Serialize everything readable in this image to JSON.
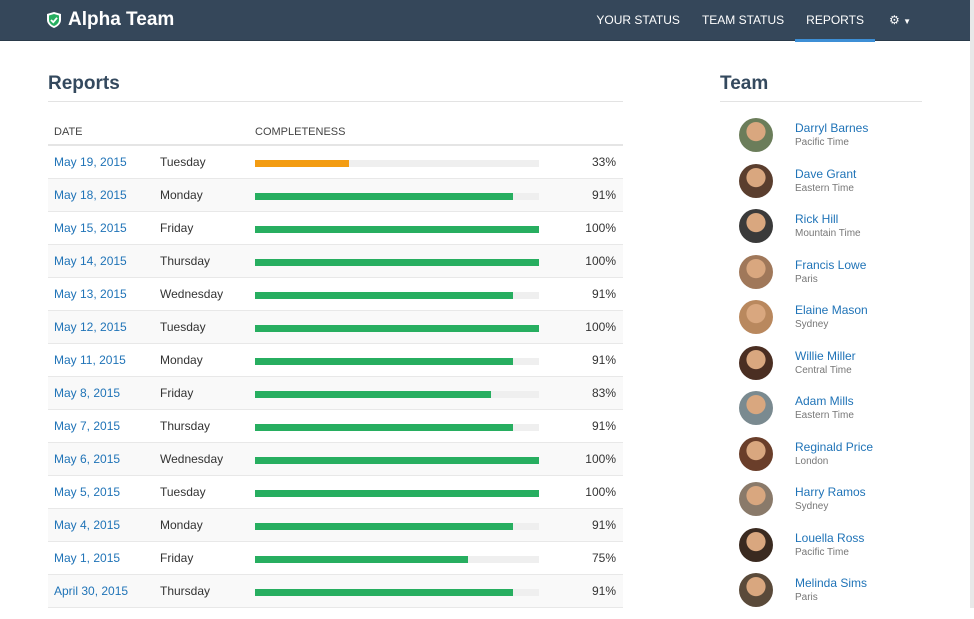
{
  "nav": {
    "brand": "Alpha Team",
    "items": [
      "YOUR STATUS",
      "TEAM STATUS",
      "REPORTS"
    ],
    "active": 2
  },
  "reports": {
    "title": "Reports",
    "headers": {
      "date": "DATE",
      "completeness": "COMPLETENESS"
    },
    "rows": [
      {
        "date": "May 19, 2015",
        "day": "Tuesday",
        "pct": 33,
        "label": "33%"
      },
      {
        "date": "May 18, 2015",
        "day": "Monday",
        "pct": 91,
        "label": "91%"
      },
      {
        "date": "May 15, 2015",
        "day": "Friday",
        "pct": 100,
        "label": "100%"
      },
      {
        "date": "May 14, 2015",
        "day": "Thursday",
        "pct": 100,
        "label": "100%"
      },
      {
        "date": "May 13, 2015",
        "day": "Wednesday",
        "pct": 91,
        "label": "91%"
      },
      {
        "date": "May 12, 2015",
        "day": "Tuesday",
        "pct": 100,
        "label": "100%"
      },
      {
        "date": "May 11, 2015",
        "day": "Monday",
        "pct": 91,
        "label": "91%"
      },
      {
        "date": "May 8, 2015",
        "day": "Friday",
        "pct": 83,
        "label": "83%"
      },
      {
        "date": "May 7, 2015",
        "day": "Thursday",
        "pct": 91,
        "label": "91%"
      },
      {
        "date": "May 6, 2015",
        "day": "Wednesday",
        "pct": 100,
        "label": "100%"
      },
      {
        "date": "May 5, 2015",
        "day": "Tuesday",
        "pct": 100,
        "label": "100%"
      },
      {
        "date": "May 4, 2015",
        "day": "Monday",
        "pct": 91,
        "label": "91%"
      },
      {
        "date": "May 1, 2015",
        "day": "Friday",
        "pct": 75,
        "label": "75%"
      },
      {
        "date": "April 30, 2015",
        "day": "Thursday",
        "pct": 91,
        "label": "91%"
      }
    ]
  },
  "colors": {
    "low": "#f39c12",
    "ok": "#27ae60"
  },
  "team": {
    "title": "Team",
    "members": [
      {
        "name": "Darryl Barnes",
        "tz": "Pacific Time",
        "c": "#6b7d5a"
      },
      {
        "name": "Dave Grant",
        "tz": "Eastern Time",
        "c": "#5a3e2e"
      },
      {
        "name": "Rick Hill",
        "tz": "Mountain Time",
        "c": "#3a3a3a"
      },
      {
        "name": "Francis Lowe",
        "tz": "Paris",
        "c": "#a0785a"
      },
      {
        "name": "Elaine Mason",
        "tz": "Sydney",
        "c": "#b9885e"
      },
      {
        "name": "Willie Miller",
        "tz": "Central Time",
        "c": "#4a2e22"
      },
      {
        "name": "Adam Mills",
        "tz": "Eastern Time",
        "c": "#7a8a90"
      },
      {
        "name": "Reginald Price",
        "tz": "London",
        "c": "#6a3e2a"
      },
      {
        "name": "Harry Ramos",
        "tz": "Sydney",
        "c": "#8a7a6a"
      },
      {
        "name": "Louella Ross",
        "tz": "Pacific Time",
        "c": "#3a2a20"
      },
      {
        "name": "Melinda Sims",
        "tz": "Paris",
        "c": "#5a4a3a"
      }
    ]
  }
}
